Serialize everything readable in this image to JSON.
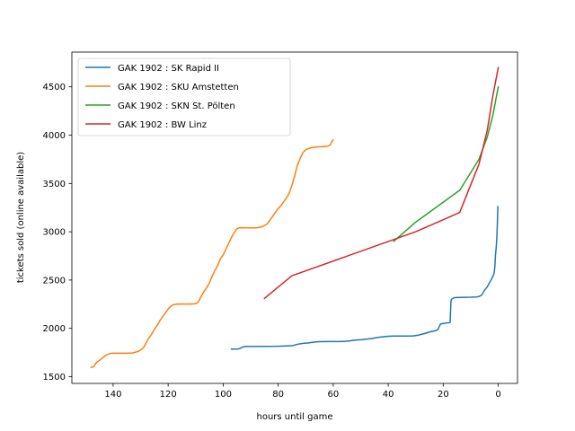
{
  "chart_data": {
    "type": "line",
    "xlabel": "hours until game",
    "ylabel": "tickets sold (online available)",
    "xlim": [
      155,
      -7
    ],
    "ylim": [
      1430,
      4860
    ],
    "x_ticks": [
      140,
      120,
      100,
      80,
      60,
      40,
      20,
      0
    ],
    "y_ticks": [
      1500,
      2000,
      2500,
      3000,
      3500,
      4000,
      4500
    ],
    "x_inverted": true,
    "grid": false,
    "legend_position": "upper-left",
    "series": [
      {
        "name": "GAK 1902 : SK Rapid II",
        "color": "#1f77b4",
        "points": [
          [
            97,
            1785
          ],
          [
            95,
            1785
          ],
          [
            94,
            1790
          ],
          [
            93,
            1805
          ],
          [
            92,
            1812
          ],
          [
            90,
            1812
          ],
          [
            86,
            1813
          ],
          [
            80,
            1815
          ],
          [
            75,
            1820
          ],
          [
            73,
            1835
          ],
          [
            71,
            1845
          ],
          [
            69,
            1850
          ],
          [
            67,
            1858
          ],
          [
            65,
            1862
          ],
          [
            62,
            1863
          ],
          [
            58,
            1863
          ],
          [
            56,
            1865
          ],
          [
            54,
            1870
          ],
          [
            52,
            1878
          ],
          [
            50,
            1882
          ],
          [
            48,
            1888
          ],
          [
            46,
            1895
          ],
          [
            44,
            1905
          ],
          [
            42,
            1912
          ],
          [
            40,
            1918
          ],
          [
            38,
            1920
          ],
          [
            34,
            1920
          ],
          [
            31,
            1922
          ],
          [
            29,
            1930
          ],
          [
            27,
            1945
          ],
          [
            25,
            1962
          ],
          [
            23,
            1975
          ],
          [
            22,
            1985
          ],
          [
            21,
            2045
          ],
          [
            20,
            2050
          ],
          [
            19,
            2055
          ],
          [
            18,
            2058
          ],
          [
            17.5,
            2060
          ],
          [
            17.2,
            2280
          ],
          [
            17,
            2300
          ],
          [
            16,
            2318
          ],
          [
            14,
            2320
          ],
          [
            10,
            2322
          ],
          [
            8,
            2325
          ],
          [
            7,
            2330
          ],
          [
            6,
            2345
          ],
          [
            5,
            2395
          ],
          [
            4,
            2430
          ],
          [
            3,
            2480
          ],
          [
            2,
            2535
          ],
          [
            1.5,
            2570
          ],
          [
            1.2,
            2650
          ],
          [
            1,
            2760
          ],
          [
            0.7,
            2850
          ],
          [
            0.5,
            2950
          ],
          [
            0.3,
            3100
          ],
          [
            0.15,
            3260
          ]
        ]
      },
      {
        "name": "GAK 1902 : SKU Amstetten",
        "color": "#ff7f0e",
        "points": [
          [
            148,
            1595
          ],
          [
            147,
            1605
          ],
          [
            146,
            1650
          ],
          [
            145,
            1668
          ],
          [
            144,
            1690
          ],
          [
            143,
            1715
          ],
          [
            142,
            1730
          ],
          [
            141,
            1740
          ],
          [
            140,
            1742
          ],
          [
            138,
            1742
          ],
          [
            135,
            1742
          ],
          [
            133,
            1745
          ],
          [
            131,
            1760
          ],
          [
            130,
            1775
          ],
          [
            129,
            1800
          ],
          [
            128,
            1850
          ],
          [
            127,
            1900
          ],
          [
            126,
            1940
          ],
          [
            125,
            1990
          ],
          [
            124,
            2030
          ],
          [
            123,
            2080
          ],
          [
            122,
            2120
          ],
          [
            121,
            2160
          ],
          [
            120,
            2200
          ],
          [
            119,
            2230
          ],
          [
            118,
            2245
          ],
          [
            117,
            2250
          ],
          [
            115,
            2252
          ],
          [
            112,
            2252
          ],
          [
            110,
            2255
          ],
          [
            109,
            2275
          ],
          [
            108,
            2330
          ],
          [
            107,
            2380
          ],
          [
            106,
            2420
          ],
          [
            105,
            2470
          ],
          [
            104,
            2540
          ],
          [
            103,
            2600
          ],
          [
            102,
            2650
          ],
          [
            101,
            2720
          ],
          [
            100,
            2760
          ],
          [
            99,
            2820
          ],
          [
            98,
            2880
          ],
          [
            97,
            2940
          ],
          [
            96,
            2990
          ],
          [
            95,
            3030
          ],
          [
            94,
            3042
          ],
          [
            92,
            3040
          ],
          [
            88,
            3040
          ],
          [
            86,
            3050
          ],
          [
            84,
            3080
          ],
          [
            83,
            3120
          ],
          [
            82,
            3160
          ],
          [
            81,
            3200
          ],
          [
            80,
            3240
          ],
          [
            79,
            3270
          ],
          [
            78,
            3310
          ],
          [
            77,
            3350
          ],
          [
            76,
            3400
          ],
          [
            75,
            3480
          ],
          [
            74,
            3580
          ],
          [
            73,
            3690
          ],
          [
            72,
            3760
          ],
          [
            71,
            3820
          ],
          [
            70,
            3848
          ],
          [
            69,
            3860
          ],
          [
            68,
            3870
          ],
          [
            66,
            3878
          ],
          [
            64,
            3880
          ],
          [
            62,
            3885
          ],
          [
            61,
            3900
          ],
          [
            60.5,
            3935
          ],
          [
            60,
            3950
          ]
        ]
      },
      {
        "name": "GAK 1902 : SKN St. Pölten",
        "color": "#2ca02c",
        "points": [
          [
            38,
            2900
          ],
          [
            34,
            3000
          ],
          [
            30,
            3100
          ],
          [
            14,
            3430
          ],
          [
            7,
            3750
          ],
          [
            4,
            3980
          ],
          [
            2,
            4200
          ],
          [
            0,
            4500
          ]
        ]
      },
      {
        "name": "GAK 1902 : BW Linz",
        "color": "#d62728",
        "points": [
          [
            85,
            2310
          ],
          [
            75,
            2545
          ],
          [
            30,
            3000
          ],
          [
            14,
            3200
          ],
          [
            7,
            3700
          ],
          [
            4,
            4050
          ],
          [
            2,
            4400
          ],
          [
            0,
            4700
          ]
        ]
      }
    ]
  }
}
